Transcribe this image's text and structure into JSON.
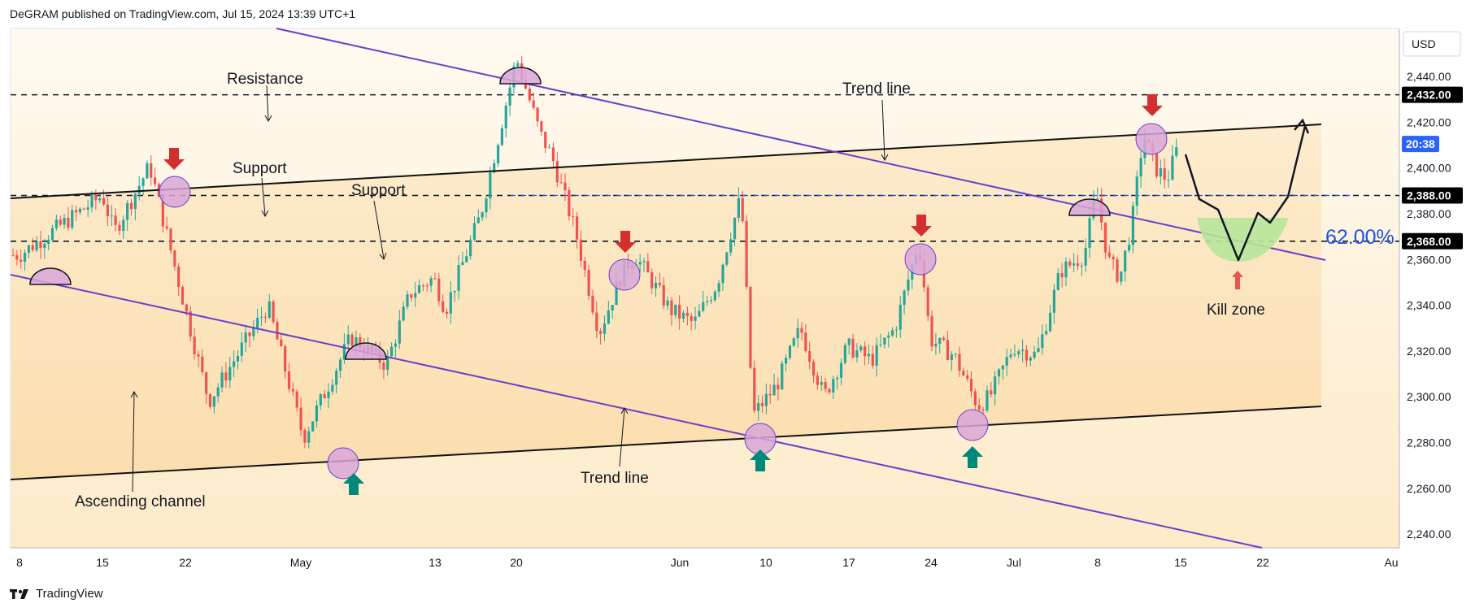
{
  "header": {
    "text": "DeGRAM published on TradingView.com, Jul 15, 2024 13:39 UTC+1"
  },
  "footer": {
    "brand": "TradingView"
  },
  "currency": "USD",
  "colors": {
    "up": "#26a69a",
    "down": "#ef5350",
    "trendline": "#6a3fc8",
    "channel": "#000000",
    "highlight": "#d9a6d8",
    "kill_zone": "#b7e59a",
    "arrow_down": "#d32f2f",
    "arrow_up": "#00897b",
    "fib": "#1e53e5",
    "price_box": "#000000",
    "last_price_box": "#2962ff"
  },
  "annotations": {
    "resistance": "Resistance",
    "support_1": "Support",
    "support_2": "Support",
    "trend_line_top": "Trend line",
    "trend_line_bottom": "Trend line",
    "ascending_channel": "Ascending channel",
    "kill_zone": "Kill zone",
    "fib": "62.00%"
  },
  "chart_data": {
    "type": "candlestick",
    "title": "",
    "symbol": "",
    "x_ticks": [
      "8",
      "15",
      "22",
      "May",
      "13",
      "20",
      "Jun",
      "10",
      "17",
      "24",
      "Jul",
      "8",
      "15",
      "22",
      "Au"
    ],
    "y_ticks": [
      "2,240.00",
      "2,260.00",
      "2,280.00",
      "2,300.00",
      "2,320.00",
      "2,340.00",
      "2,360.00",
      "2,380.00",
      "2,400.00",
      "2,420.00",
      "2,440.00"
    ],
    "ylim": [
      2234,
      2461
    ],
    "levels": [
      {
        "name": "Resistance",
        "value": 2432.0,
        "label": "2,432.00"
      },
      {
        "name": "Support",
        "value": 2388.0,
        "label": "2,388.00"
      },
      {
        "name": "Support",
        "value": 2368.0,
        "label": "2,368.00"
      }
    ],
    "last_price": {
      "value": 2410.5,
      "countdown": "20:38"
    },
    "swing_points": [
      {
        "date": "Apr 8",
        "price": 2362
      },
      {
        "date": "Apr 15",
        "price": 2388
      },
      {
        "date": "Apr 16",
        "price": 2372
      },
      {
        "date": "Apr 19",
        "price": 2401
      },
      {
        "date": "Apr 23",
        "price": 2318
      },
      {
        "date": "Apr 24",
        "price": 2298
      },
      {
        "date": "Apr 29",
        "price": 2340
      },
      {
        "date": "May 2",
        "price": 2282
      },
      {
        "date": "May 6",
        "price": 2326
      },
      {
        "date": "May 9",
        "price": 2314
      },
      {
        "date": "May 11",
        "price": 2345
      },
      {
        "date": "May 13",
        "price": 2352
      },
      {
        "date": "May 14",
        "price": 2338
      },
      {
        "date": "May 17",
        "price": 2380
      },
      {
        "date": "May 20",
        "price": 2448
      },
      {
        "date": "May 22",
        "price": 2415
      },
      {
        "date": "May 23",
        "price": 2405
      },
      {
        "date": "May 25",
        "price": 2372
      },
      {
        "date": "May 27",
        "price": 2328
      },
      {
        "date": "May 29",
        "price": 2355
      },
      {
        "date": "May 30",
        "price": 2362
      },
      {
        "date": "Jun 2",
        "price": 2338
      },
      {
        "date": "Jun 4",
        "price": 2332
      },
      {
        "date": "Jun 6",
        "price": 2350
      },
      {
        "date": "Jun 7",
        "price": 2370
      },
      {
        "date": "Jun 8",
        "price": 2388
      },
      {
        "date": "Jun 9",
        "price": 2292
      },
      {
        "date": "Jun 11",
        "price": 2305
      },
      {
        "date": "Jun 13",
        "price": 2330
      },
      {
        "date": "Jun 15",
        "price": 2300
      },
      {
        "date": "Jun 17",
        "price": 2322
      },
      {
        "date": "Jun 19",
        "price": 2316
      },
      {
        "date": "Jun 21",
        "price": 2330
      },
      {
        "date": "Jun 23",
        "price": 2368
      },
      {
        "date": "Jun 24",
        "price": 2325
      },
      {
        "date": "Jun 26",
        "price": 2318
      },
      {
        "date": "Jun 28",
        "price": 2296
      },
      {
        "date": "Jun 29",
        "price": 2300
      },
      {
        "date": "Jul 1",
        "price": 2322
      },
      {
        "date": "Jul 3",
        "price": 2318
      },
      {
        "date": "Jul 5",
        "price": 2355
      },
      {
        "date": "Jul 7",
        "price": 2362
      },
      {
        "date": "Jul 8",
        "price": 2390
      },
      {
        "date": "Jul 9",
        "price": 2360
      },
      {
        "date": "Jul 10",
        "price": 2352
      },
      {
        "date": "Jul 11",
        "price": 2375
      },
      {
        "date": "Jul 12",
        "price": 2415
      },
      {
        "date": "Jul 13",
        "price": 2400
      },
      {
        "date": "Jul 14",
        "price": 2395
      },
      {
        "date": "Jul 15",
        "price": 2410.5
      }
    ],
    "forecast_path": [
      {
        "date": "Jul 15",
        "price": 2415
      },
      {
        "date": "Jul 17",
        "price": 2385
      },
      {
        "date": "Jul 18",
        "price": 2375
      },
      {
        "date": "Jul 19",
        "price": 2390
      },
      {
        "date": "Jul 20",
        "price": 2370
      },
      {
        "date": "Jul 21",
        "price": 2390
      },
      {
        "date": "Jul 22",
        "price": 2382
      },
      {
        "date": "Jul 25",
        "price": 2432
      }
    ]
  }
}
